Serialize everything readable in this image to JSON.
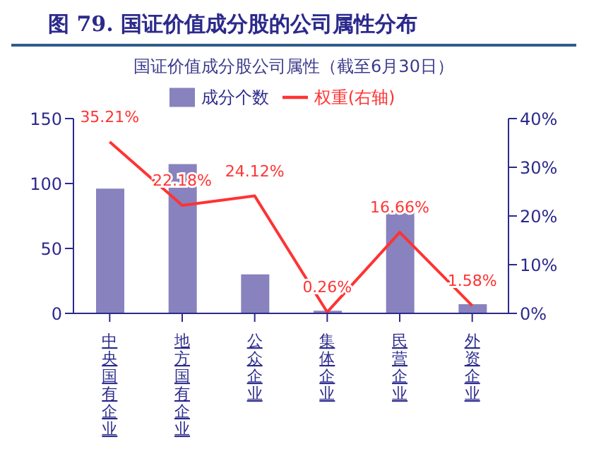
{
  "chart_data": {
    "type": "bar",
    "title": "图  79. 国证价值成分股的公司属性分布",
    "subtitle": "国证价值成分股公司属性（截至6月30日）",
    "categories": [
      "中央国有企业",
      "地方国有企业",
      "公众企业",
      "集体企业",
      "民营企业",
      "外资企业"
    ],
    "series": [
      {
        "name": "成分个数",
        "color": "#8882be",
        "values": [
          96,
          115,
          30,
          2,
          78,
          7
        ]
      },
      {
        "name": "权重(右轴)",
        "type": "line",
        "axis": "y2",
        "color": "#ff3333",
        "values": [
          35.21,
          22.18,
          24.12,
          0.26,
          16.66,
          1.58
        ],
        "value_labels": [
          "35.21%",
          "22.18%",
          "24.12%",
          "0.26%",
          "16.66%",
          "1.58%"
        ]
      }
    ],
    "ylim": [
      0,
      150
    ],
    "yticks": [
      0,
      50,
      100,
      150
    ],
    "y2lim": [
      0,
      40
    ],
    "y2ticks": [
      {
        "value": 0,
        "label": "0%"
      },
      {
        "value": 10,
        "label": "10%"
      },
      {
        "value": 20,
        "label": "20%"
      },
      {
        "value": 30,
        "label": "30%"
      },
      {
        "value": 40,
        "label": "40%"
      }
    ],
    "legend": "top",
    "grid": false,
    "marker": "none"
  }
}
